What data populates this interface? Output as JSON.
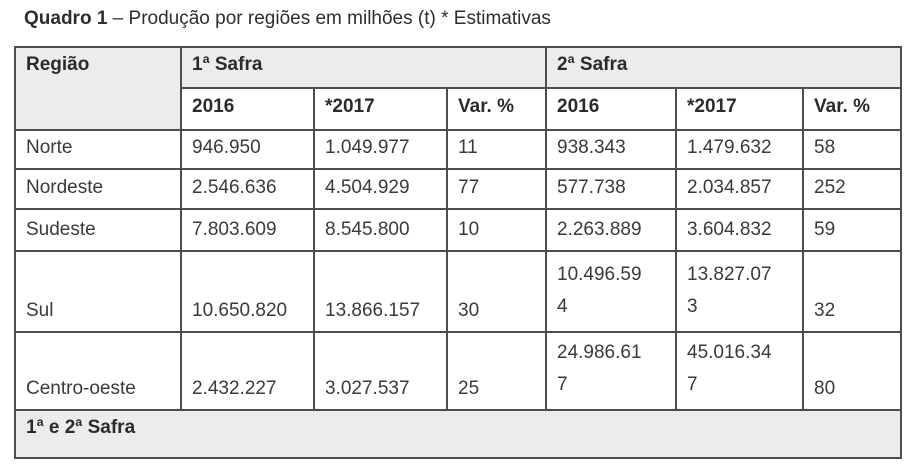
{
  "title": {
    "bold": "Quadro 1",
    "rest": " – Produção por regiões em milhões (t) * Estimativas"
  },
  "table": {
    "header": {
      "region": "Região",
      "safra1": "1ª Safra",
      "safra2": "2ª Safra",
      "subcolumns": [
        "2016",
        "*2017",
        "Var. %",
        "2016",
        "*2017",
        "Var. %"
      ]
    },
    "rows": [
      {
        "region": "Norte",
        "values": [
          "946.950",
          "1.049.977",
          "11",
          "938.343",
          "1.479.632",
          "58"
        ]
      },
      {
        "region": "Nordeste",
        "values": [
          "2.546.636",
          "4.504.929",
          "77",
          "577.738",
          "2.034.857",
          "252"
        ]
      },
      {
        "region": "Sudeste",
        "values": [
          "7.803.609",
          "8.545.800",
          "10",
          "2.263.889",
          "3.604.832",
          "59"
        ]
      },
      {
        "region": "Sul",
        "values": [
          "10.650.820",
          "13.866.157",
          "30",
          "10.496.59\n4",
          "13.827.07\n3",
          "32"
        ]
      },
      {
        "region": "Centro-oeste",
        "values": [
          "2.432.227",
          "3.027.537",
          "25",
          "24.986.61\n7",
          "45.016.34\n7",
          "80"
        ]
      }
    ],
    "footer": "1ª e 2ª Safra"
  },
  "colors": {
    "header_bg": "#ececec",
    "border": "#4d4d4d",
    "text": "#333333"
  }
}
